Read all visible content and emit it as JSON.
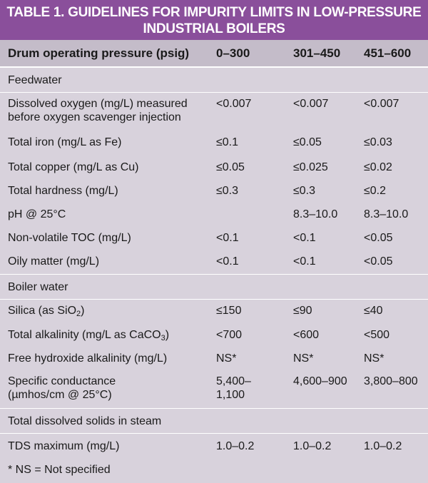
{
  "title": {
    "line1": "TABLE 1. GUIDELINES FOR IMPURITY LIMITS IN LOW-PRESSURE",
    "line2": "INDUSTRIAL BOILERS"
  },
  "header": [
    "Drum operating pressure (psig)",
    "0–300",
    "301–450",
    "451–600"
  ],
  "sections": {
    "feedwater": "Feedwater",
    "boiler_water": "Boiler water",
    "steam": "Total dissolved solids in steam"
  },
  "feedwater_rows": [
    {
      "name": "Dissolved oxygen (mg/L) measured",
      "name2": "before oxygen scavenger injection",
      "v": [
        "<0.007",
        "<0.007",
        "<0.007"
      ]
    },
    {
      "name": "Total iron (mg/L as Fe)",
      "v": [
        "≤0.1",
        "≤0.05",
        "≤0.03"
      ]
    },
    {
      "name": "Total copper (mg/L as Cu)",
      "v": [
        "≤0.05",
        "≤0.025",
        "≤0.02"
      ]
    },
    {
      "name": "Total hardness (mg/L)",
      "v": [
        "≤0.3",
        "≤0.3",
        "≤0.2"
      ]
    },
    {
      "name": "pH @ 25°C",
      "v": [
        "",
        "8.3–10.0",
        "8.3–10.0"
      ]
    },
    {
      "name": "Non-volatile TOC (mg/L)",
      "v": [
        "<0.1",
        "<0.1",
        "<0.05"
      ]
    },
    {
      "name": "Oily matter (mg/L)",
      "v": [
        "<0.1",
        "<0.1",
        "<0.05"
      ]
    }
  ],
  "boiler_rows": [
    {
      "name": "Silica (as SiO",
      "sub": "2",
      "tail": ")",
      "v": [
        "≤150",
        "≤90",
        "≤40"
      ]
    },
    {
      "name": "Total alkalinity (mg/L as CaCO",
      "sub": "3",
      "tail": ")",
      "v": [
        "<700",
        "<600",
        "<500"
      ]
    },
    {
      "name": "Free hydroxide alkalinity (mg/L)",
      "v": [
        "NS*",
        "NS*",
        "NS*"
      ]
    },
    {
      "name": "Specific conductance",
      "name2": "(µmhos/cm @ 25°C)",
      "v": [
        "5,400–",
        "4,600–900",
        "3,800–800"
      ],
      "v2": "1,100"
    }
  ],
  "steam_rows": [
    {
      "name": "TDS maximum (mg/L)",
      "v": [
        "1.0–0.2",
        "1.0–0.2",
        "1.0–0.2"
      ]
    }
  ],
  "footnote": "* NS = Not specified",
  "colors": {
    "title_bg": "#8a4f9b",
    "header_bg": "#c4bcc9",
    "body_bg": "#d8d2dc"
  }
}
